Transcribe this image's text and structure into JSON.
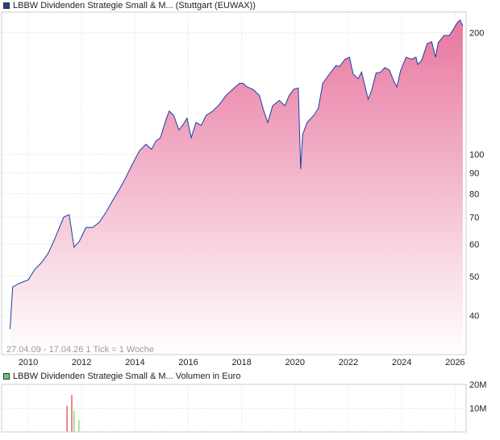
{
  "chart_data": [
    {
      "type": "area",
      "legend": "LBBW Dividenden Strategie Small & M... (Stuttgart (EUWAX))",
      "legend_color": "#1f3f99",
      "line_color": "#1a3fa8",
      "fill_top_color": "#e8779f",
      "fill_bottom_color": "#ffffff",
      "y_scale": "log",
      "ylim": [
        32,
        225
      ],
      "xlim": [
        "2009-01-01",
        "2026-06-01"
      ],
      "yticks": [
        40,
        50,
        60,
        70,
        80,
        90,
        100,
        200
      ],
      "ytick_labels": [
        "40",
        "50",
        "60",
        "70",
        "80",
        "90",
        "100",
        "200"
      ],
      "xticks": [
        "2010",
        "2012",
        "2014",
        "2016",
        "2018",
        "2020",
        "2022",
        "2024",
        "2026"
      ],
      "grid": true,
      "info_text": "27.04.09 - 17.04.26   1 Tick = 1 Woche",
      "x": [
        "2009-04-27",
        "2009-06-01",
        "2009-09-01",
        "2010-01-01",
        "2010-04-01",
        "2010-07-01",
        "2010-10-01",
        "2011-01-01",
        "2011-05-01",
        "2011-07-15",
        "2011-09-20",
        "2011-12-01",
        "2012-03-01",
        "2012-06-01",
        "2012-09-01",
        "2012-12-01",
        "2013-03-01",
        "2013-06-01",
        "2013-09-01",
        "2013-12-01",
        "2014-03-01",
        "2014-06-01",
        "2014-08-15",
        "2014-10-15",
        "2014-12-15",
        "2015-03-01",
        "2015-04-15",
        "2015-06-15",
        "2015-08-25",
        "2015-10-15",
        "2015-12-15",
        "2016-02-10",
        "2016-04-15",
        "2016-06-27",
        "2016-09-01",
        "2016-12-01",
        "2017-03-01",
        "2017-06-01",
        "2017-09-01",
        "2017-12-01",
        "2018-01-20",
        "2018-03-15",
        "2018-06-01",
        "2018-09-01",
        "2018-10-25",
        "2018-12-25",
        "2019-03-01",
        "2019-06-01",
        "2019-08-15",
        "2019-10-15",
        "2019-12-15",
        "2020-02-15",
        "2020-03-18",
        "2020-04-15",
        "2020-06-15",
        "2020-09-15",
        "2020-11-15",
        "2021-01-15",
        "2021-04-15",
        "2021-07-15",
        "2021-09-01",
        "2021-11-15",
        "2022-01-15",
        "2022-03-08",
        "2022-05-15",
        "2022-07-01",
        "2022-09-28",
        "2022-11-15",
        "2023-01-15",
        "2023-03-20",
        "2023-05-15",
        "2023-07-15",
        "2023-09-15",
        "2023-10-28",
        "2023-12-15",
        "2024-03-01",
        "2024-05-15",
        "2024-07-15",
        "2024-08-06",
        "2024-10-01",
        "2024-12-15",
        "2025-02-15",
        "2025-04-08",
        "2025-05-15",
        "2025-08-01",
        "2025-10-15",
        "2025-12-15",
        "2026-02-01",
        "2026-03-10",
        "2026-04-17"
      ],
      "values": [
        37,
        47,
        48,
        49,
        52,
        54,
        57,
        62,
        70,
        71,
        59,
        61,
        66,
        66,
        68,
        72,
        77,
        82,
        88,
        95,
        102,
        106,
        103,
        108,
        110,
        122,
        128,
        125,
        115,
        118,
        123,
        110,
        120,
        118,
        125,
        128,
        133,
        140,
        145,
        150,
        150,
        147,
        145,
        140,
        129,
        120,
        132,
        136,
        132,
        140,
        145,
        146,
        92,
        112,
        120,
        125,
        130,
        150,
        158,
        166,
        165,
        172,
        174,
        158,
        154,
        160,
        137,
        144,
        159,
        160,
        164,
        162,
        152,
        147,
        161,
        174,
        172,
        174,
        167,
        171,
        188,
        190,
        174,
        189,
        197,
        197,
        205,
        212,
        215,
        208
      ]
    },
    {
      "type": "bar",
      "legend": "LBBW Dividenden Strategie Small & M... Volumen in Euro",
      "legend_color": "#66cc66",
      "ylim": [
        0,
        20000000
      ],
      "yticks": [
        0,
        10000000,
        20000000
      ],
      "ytick_labels": [
        "",
        "10M",
        "20M"
      ],
      "xticks": [
        "2010",
        "2012",
        "2014",
        "2016",
        "2018",
        "2020",
        "2022",
        "2024",
        "2026"
      ],
      "grid": true,
      "bars": [
        {
          "x": "2011-06-15",
          "value": 11000000,
          "color": "#d43f3f"
        },
        {
          "x": "2011-08-20",
          "value": 15500000,
          "color": "#d43f3f"
        },
        {
          "x": "2011-09-20",
          "value": 9000000,
          "color": "#77cc66"
        },
        {
          "x": "2011-11-25",
          "value": 5000000,
          "color": "#77cc66"
        },
        {
          "x": "2012-03-10",
          "value": 300000,
          "color": "#77cc66"
        },
        {
          "x": "2012-08-10",
          "value": 300000,
          "color": "#77cc66"
        },
        {
          "x": "2013-06-10",
          "value": 200000,
          "color": "#77cc66"
        },
        {
          "x": "2014-05-10",
          "value": 300000,
          "color": "#77cc66"
        },
        {
          "x": "2015-03-10",
          "value": 200000,
          "color": "#77cc66"
        },
        {
          "x": "2016-06-10",
          "value": 200000,
          "color": "#77cc66"
        },
        {
          "x": "2017-09-10",
          "value": 200000,
          "color": "#77cc66"
        },
        {
          "x": "2018-11-10",
          "value": 200000,
          "color": "#77cc66"
        },
        {
          "x": "2020-03-20",
          "value": 400000,
          "color": "#77cc66"
        },
        {
          "x": "2021-05-10",
          "value": 200000,
          "color": "#77cc66"
        },
        {
          "x": "2022-07-10",
          "value": 200000,
          "color": "#77cc66"
        },
        {
          "x": "2023-08-10",
          "value": 200000,
          "color": "#77cc66"
        },
        {
          "x": "2024-10-10",
          "value": 200000,
          "color": "#77cc66"
        },
        {
          "x": "2025-11-10",
          "value": 200000,
          "color": "#77cc66"
        }
      ]
    }
  ]
}
